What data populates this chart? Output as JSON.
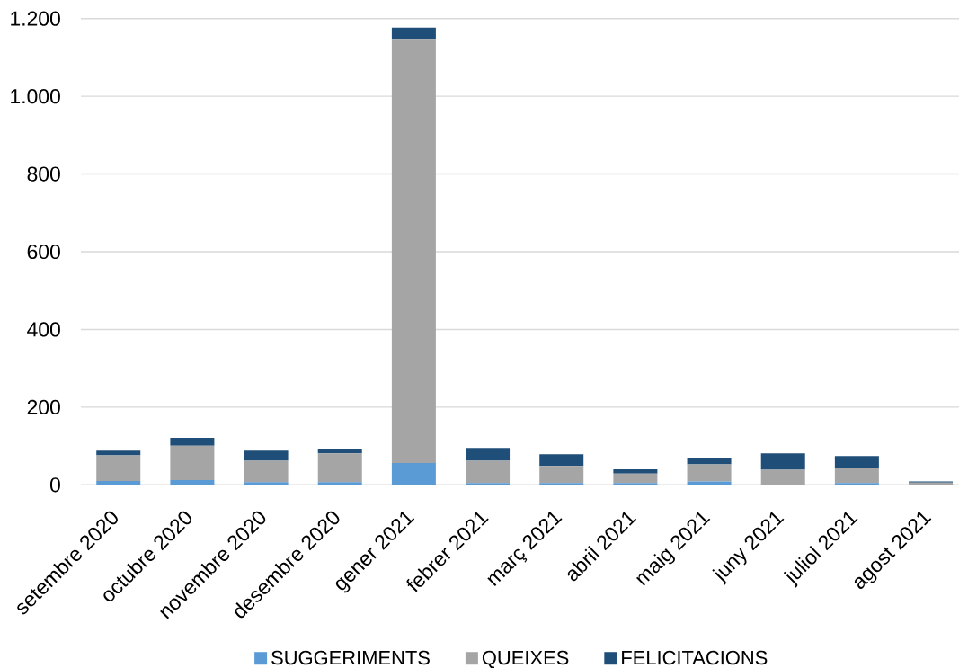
{
  "chart_data": {
    "type": "bar",
    "stacked": true,
    "categories": [
      "setembre 2020",
      "octubre 2020",
      "novembre 2020",
      "desembre 2020",
      "gener 2021",
      "febrer 2021",
      "març 2021",
      "abril 2021",
      "maig 2021",
      "juny 2021",
      "juliol 2021",
      "agost 2021"
    ],
    "series": [
      {
        "name": "SUGGERIMENTS",
        "color": "#5B9BD5",
        "values": [
          10,
          12,
          7,
          7,
          56,
          5,
          5,
          5,
          9,
          0,
          5,
          0
        ]
      },
      {
        "name": "QUEIXES",
        "color": "#A5A5A5",
        "values": [
          66,
          89,
          55,
          74,
          1092,
          57,
          44,
          24,
          44,
          39,
          38,
          6
        ]
      },
      {
        "name": "FELICITACIONS",
        "color": "#1F4E79",
        "values": [
          12,
          20,
          26,
          12,
          29,
          33,
          30,
          11,
          17,
          42,
          31,
          3
        ]
      }
    ],
    "ylim": [
      0,
      1200
    ],
    "yticks": [
      0,
      200,
      400,
      600,
      800,
      {
        "value": 1000,
        "label": "1.000"
      },
      {
        "value": 1200,
        "label": "1.200"
      }
    ],
    "grid": "y",
    "legend": "bottom"
  }
}
